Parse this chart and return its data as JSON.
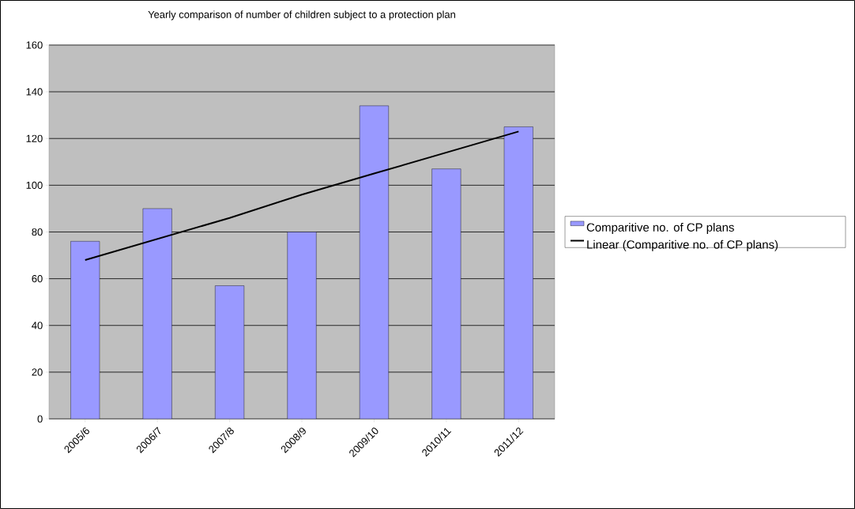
{
  "chart_data": {
    "type": "bar",
    "title": "Yearly comparison of number of children subject to a protection plan",
    "categories": [
      "2005/6",
      "2006/7",
      "2007/8",
      "2008/9",
      "2009/10",
      "2010/11",
      "2011/12"
    ],
    "series": [
      {
        "name": "Comparitive no. of CP plans",
        "color": "#9999ff",
        "values": [
          76,
          90,
          57,
          80,
          134,
          107,
          125
        ]
      },
      {
        "name": "Linear (Comparitive no. of CP plans)",
        "type": "line",
        "color": "#000000",
        "values": [
          68,
          77,
          86,
          96,
          105,
          114,
          123
        ]
      }
    ],
    "ylim": [
      0,
      160
    ],
    "yticks": [
      0,
      20,
      40,
      60,
      80,
      100,
      120,
      140,
      160
    ],
    "grid": "y",
    "legend": "right",
    "marker": "none",
    "line_style": "solid"
  }
}
